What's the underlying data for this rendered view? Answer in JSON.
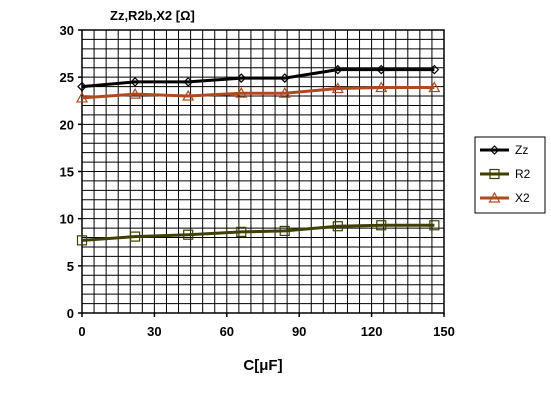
{
  "chart_data": {
    "type": "line",
    "title": "Zz,R2b,X2 [Ω]",
    "xlabel": "C[μF]",
    "ylabel": "",
    "xlim": [
      0,
      150
    ],
    "ylim": [
      0,
      30
    ],
    "xticks": [
      0,
      30,
      60,
      90,
      120,
      150
    ],
    "yticks": [
      0,
      5,
      10,
      15,
      20,
      25,
      30
    ],
    "grid": true,
    "legend_position": "right",
    "x": [
      0,
      22,
      44,
      66,
      84,
      106,
      124,
      146
    ],
    "series": [
      {
        "name": "Zz",
        "color": "#000000",
        "marker": "diamond",
        "values": [
          24.0,
          24.5,
          24.5,
          24.9,
          24.9,
          25.8,
          25.8,
          25.8
        ]
      },
      {
        "name": "R2",
        "color": "#3f3f00",
        "marker": "square",
        "values": [
          7.7,
          8.1,
          8.3,
          8.6,
          8.7,
          9.2,
          9.3,
          9.3
        ]
      },
      {
        "name": "X2",
        "color": "#b04a1e",
        "marker": "triangle",
        "values": [
          22.8,
          23.2,
          23.0,
          23.3,
          23.3,
          23.8,
          23.9,
          23.9
        ]
      }
    ]
  }
}
